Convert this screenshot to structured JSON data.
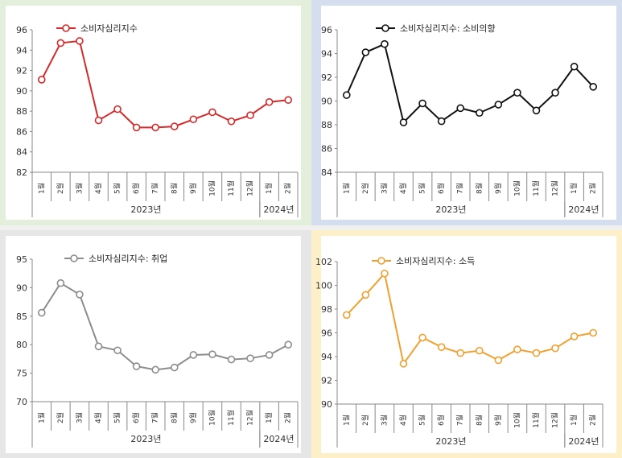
{
  "chart_data": [
    {
      "type": "line",
      "series": [
        {
          "name": "소비자심리지수",
          "values": [
            91.1,
            94.7,
            94.9,
            87.1,
            88.2,
            86.4,
            86.4,
            86.5,
            87.2,
            87.9,
            87.0,
            87.6,
            88.9,
            89.1
          ]
        }
      ],
      "categories": [
        "1월",
        "2월",
        "3월",
        "4월",
        "5월",
        "6월",
        "7월",
        "8월",
        "9월",
        "10월",
        "11월",
        "12월",
        "1월",
        "2월"
      ],
      "year_groups": [
        {
          "label": "2023년",
          "count": 12
        },
        {
          "label": "2024년",
          "count": 2
        }
      ],
      "ylim": [
        82,
        96
      ],
      "yticks": [
        82,
        84,
        86,
        88,
        90,
        92,
        94,
        96
      ],
      "color": "#d42a2a",
      "background": "#e3eedb"
    },
    {
      "type": "line",
      "series": [
        {
          "name": "소비자심리지수: 소비의향",
          "values": [
            90.5,
            94.1,
            94.8,
            88.2,
            89.8,
            88.3,
            89.4,
            89.0,
            89.7,
            90.7,
            89.2,
            90.7,
            92.9,
            91.2
          ]
        }
      ],
      "categories": [
        "1월",
        "2월",
        "3월",
        "4월",
        "5월",
        "6월",
        "7월",
        "8월",
        "9월",
        "10월",
        "11월",
        "12월",
        "1월",
        "2월"
      ],
      "year_groups": [
        {
          "label": "2023년",
          "count": 12
        },
        {
          "label": "2024년",
          "count": 2
        }
      ],
      "ylim": [
        84,
        96
      ],
      "yticks": [
        84,
        86,
        88,
        90,
        92,
        94,
        96
      ],
      "color": "#111111",
      "background": "#d5deef"
    },
    {
      "type": "line",
      "series": [
        {
          "name": "소비자심리지수: 취업",
          "values": [
            85.6,
            90.8,
            88.8,
            79.7,
            79.0,
            76.2,
            75.6,
            76.0,
            78.2,
            78.3,
            77.4,
            77.6,
            78.2,
            80.0
          ]
        }
      ],
      "categories": [
        "1월",
        "2월",
        "3월",
        "4월",
        "5월",
        "6월",
        "7월",
        "8월",
        "9월",
        "10월",
        "11월",
        "12월",
        "1월",
        "2월"
      ],
      "year_groups": [
        {
          "label": "2023년",
          "count": 12
        },
        {
          "label": "2024년",
          "count": 2
        }
      ],
      "ylim": [
        70,
        95
      ],
      "yticks": [
        70,
        75,
        80,
        85,
        90,
        95
      ],
      "color": "#8c8c8c",
      "background": "#e6e6e6"
    },
    {
      "type": "line",
      "series": [
        {
          "name": "소비자심리지수: 소득",
          "values": [
            97.5,
            99.2,
            101.0,
            93.4,
            95.6,
            94.8,
            94.3,
            94.5,
            93.7,
            94.6,
            94.3,
            94.7,
            95.7,
            96.0
          ]
        }
      ],
      "categories": [
        "1월",
        "2월",
        "3월",
        "4월",
        "5월",
        "6월",
        "7월",
        "8월",
        "9월",
        "10월",
        "11월",
        "12월",
        "1월",
        "2월"
      ],
      "year_groups": [
        {
          "label": "2023년",
          "count": 12
        },
        {
          "label": "2024년",
          "count": 2
        }
      ],
      "ylim": [
        90,
        102
      ],
      "yticks": [
        90,
        92,
        94,
        96,
        98,
        100,
        102
      ],
      "color": "#f0a030",
      "background": "#fdf0c8"
    }
  ]
}
